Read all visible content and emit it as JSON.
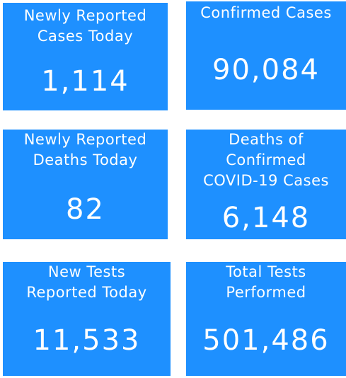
{
  "tiles": [
    {
      "label_lines": [
        "Newly Reported",
        "Cases Today"
      ],
      "value": "1,114"
    },
    {
      "label_lines": [
        "Confirmed Cases"
      ],
      "value": "90,084"
    },
    {
      "label_lines": [
        "Newly Reported",
        "Deaths Today"
      ],
      "value": "82"
    },
    {
      "label_lines": [
        "Deaths of",
        "Confirmed",
        "COVID-19 Cases"
      ],
      "value": "6,148"
    },
    {
      "label_lines": [
        "New Tests",
        "Reported Today"
      ],
      "value": "11,533"
    },
    {
      "label_lines": [
        "Total Tests",
        "Performed"
      ],
      "value": "501,486"
    }
  ]
}
